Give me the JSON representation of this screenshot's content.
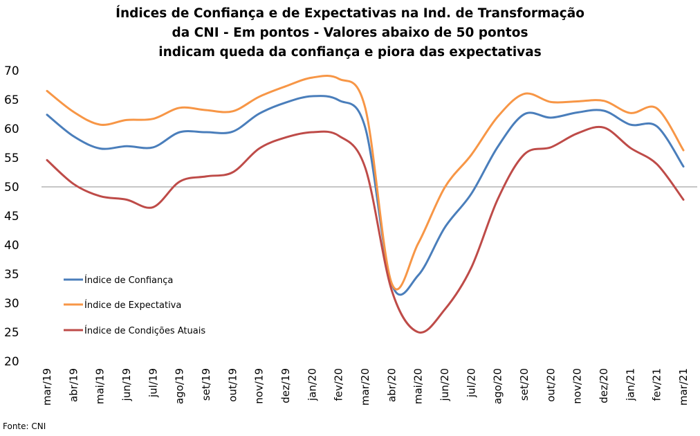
{
  "chart_data": {
    "type": "line",
    "title_lines": [
      "Índices de Confiança e de Expectativas na Ind. de Transformação",
      "da CNI - Em pontos - Valores abaixo de 50 pontos",
      "indicam queda da confiança e piora das expectativas"
    ],
    "categories": [
      "mar/19",
      "abr/19",
      "mai/19",
      "jun/19",
      "jul/19",
      "ago/19",
      "set/19",
      "out/19",
      "nov/19",
      "dez/19",
      "jan/20",
      "fev/20",
      "mar/20",
      "abr/20",
      "mai/20",
      "jun/20",
      "jul/20",
      "ago/20",
      "set/20",
      "out/20",
      "nov/20",
      "dez/20",
      "jan/21",
      "fev/21",
      "mar/21"
    ],
    "ylim": [
      20,
      70
    ],
    "yticks": [
      20,
      25,
      30,
      35,
      40,
      45,
      50,
      55,
      60,
      65,
      70
    ],
    "reference_line": 50,
    "legend_position": "left",
    "series": [
      {
        "name": "Índice de Confiança",
        "color": "#4a7ebb",
        "values": [
          62.4,
          58.7,
          56.6,
          57.0,
          56.8,
          59.4,
          59.4,
          59.5,
          62.6,
          64.5,
          65.6,
          64.9,
          60.2,
          33.3,
          34.8,
          43.0,
          48.8,
          56.9,
          62.5,
          61.9,
          62.8,
          63.1,
          60.7,
          60.4,
          53.5
        ]
      },
      {
        "name": "Índice de Expectativa",
        "color": "#f79646",
        "values": [
          66.5,
          62.9,
          60.7,
          61.5,
          61.7,
          63.6,
          63.2,
          63.0,
          65.5,
          67.3,
          68.8,
          68.6,
          63.6,
          33.4,
          40.3,
          49.9,
          55.5,
          62.1,
          66.0,
          64.6,
          64.7,
          64.8,
          62.7,
          63.5,
          56.3
        ]
      },
      {
        "name": "Índice de Condições Atuais",
        "color": "#be4b48",
        "values": [
          54.6,
          50.5,
          48.4,
          47.8,
          46.5,
          50.9,
          51.8,
          52.5,
          56.6,
          58.5,
          59.4,
          58.8,
          53.3,
          32.2,
          25.0,
          28.9,
          36.1,
          47.9,
          55.6,
          56.8,
          59.2,
          60.2,
          56.7,
          53.9,
          47.8
        ]
      }
    ],
    "source": "Fonte: CNI"
  }
}
